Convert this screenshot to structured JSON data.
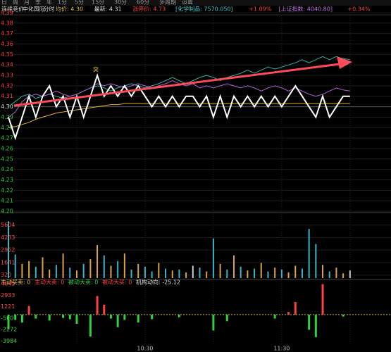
{
  "toolbar": [
    "日",
    "周",
    "月",
    "季",
    "年",
    "1分",
    "5分",
    "15分",
    "30分",
    "60分",
    "多周期",
    "设置"
  ],
  "chart_data": {
    "type": "line",
    "header": [
      {
        "text": "连续竞价",
        "color": "#dddddd"
      },
      {
        "text": "中化国际",
        "color": "#dddddd"
      },
      {
        "text": "分时",
        "color": "#dddddd"
      },
      {
        "text": "均价: 4.30",
        "color": "#e6c04a"
      },
      {
        "text": "最新: 4.31",
        "color": "#dddddd"
      },
      {
        "text": "涨停价: 4.73",
        "color": "#ff4040"
      },
      {
        "text": "[化学制品: 7570.050]",
        "color": "#3cc8c8"
      },
      {
        "text": "+1.09%",
        "color": "#ff4040"
      },
      {
        "text": "[上证指数: 4040.80]",
        "color": "#c070e0"
      },
      {
        "text": "+0.34%",
        "color": "#ff4040"
      }
    ],
    "annotation": "突",
    "prev_close": 4.3,
    "x": [
      0,
      3,
      6,
      9,
      12,
      15,
      18,
      21,
      24,
      27,
      30,
      33,
      36,
      39,
      42,
      45,
      48,
      51,
      54,
      57,
      60,
      63,
      66,
      69,
      72,
      75,
      78,
      81,
      84,
      87,
      90,
      93,
      96,
      99,
      102,
      105,
      108,
      111,
      114,
      117,
      120,
      123,
      126,
      129,
      132,
      135,
      138,
      141,
      144,
      147,
      150
    ],
    "xlim": [
      0,
      168
    ],
    "xticks": [
      {
        "value": 60,
        "label": "10:30"
      },
      {
        "value": 120,
        "label": "11:30"
      }
    ],
    "xgrid": [
      30,
      60,
      90,
      120,
      150
    ],
    "ylim": [
      4.2,
      4.39
    ],
    "yticks": [
      4.39,
      4.38,
      4.37,
      4.36,
      4.35,
      4.34,
      4.33,
      4.32,
      4.31,
      {
        "value": 4.3,
        "label": "4.30"
      },
      4.29,
      4.28,
      4.27,
      4.26,
      4.25,
      4.24,
      4.23,
      4.22,
      4.21,
      {
        "value": 4.2,
        "label": "4.20"
      }
    ],
    "up_color": "#ff4040",
    "down_color": "#30d040",
    "flat_color": "#dddddd",
    "series": [
      {
        "name": "分时",
        "color": "#ffffff",
        "values": [
          4.29,
          4.27,
          4.29,
          4.31,
          4.29,
          4.31,
          4.32,
          4.3,
          4.31,
          4.29,
          4.31,
          4.29,
          4.31,
          4.33,
          4.31,
          4.32,
          4.31,
          4.32,
          4.31,
          4.32,
          4.31,
          4.3,
          4.31,
          4.3,
          4.31,
          4.3,
          4.31,
          4.31,
          4.3,
          4.31,
          4.29,
          4.31,
          4.29,
          4.31,
          4.3,
          4.31,
          4.3,
          4.31,
          4.3,
          4.31,
          4.3,
          4.31,
          4.32,
          4.31,
          4.3,
          4.29,
          4.31,
          4.29,
          4.3,
          4.31,
          4.31
        ]
      },
      {
        "name": "均价",
        "color": "#e6b030",
        "values": [
          4.28,
          4.281,
          4.283,
          4.285,
          4.288,
          4.29,
          4.292,
          4.294,
          4.295,
          4.296,
          4.297,
          4.298,
          4.299,
          4.3,
          4.301,
          4.302,
          4.302,
          4.303,
          4.303,
          4.303,
          4.303,
          4.303,
          4.303,
          4.303,
          4.303,
          4.303,
          4.303,
          4.303,
          4.303,
          4.303,
          4.303,
          4.303,
          4.303,
          4.303,
          4.303,
          4.303,
          4.303,
          4.303,
          4.303,
          4.303,
          4.303,
          4.303,
          4.303,
          4.303,
          4.303,
          4.303,
          4.303,
          4.303,
          4.303,
          4.303,
          4.303
        ]
      },
      {
        "name": "化学制品",
        "color": "#b060d0",
        "values": [
          4.29,
          4.295,
          4.305,
          4.31,
          4.312,
          4.31,
          4.312,
          4.315,
          4.312,
          4.31,
          4.312,
          4.315,
          4.318,
          4.322,
          4.32,
          4.322,
          4.32,
          4.318,
          4.32,
          4.322,
          4.32,
          4.318,
          4.32,
          4.322,
          4.325,
          4.322,
          4.32,
          4.322,
          4.318,
          4.32,
          4.318,
          4.32,
          4.322,
          4.32,
          4.318,
          4.32,
          4.318,
          4.315,
          4.318,
          4.32,
          4.318,
          4.315,
          4.318,
          4.315,
          4.312,
          4.31,
          4.312,
          4.315,
          4.318,
          4.316,
          4.315
        ]
      },
      {
        "name": "上证指数",
        "color": "#30b0a0",
        "values": [
          4.3,
          4.305,
          4.31,
          4.312,
          4.308,
          4.31,
          4.312,
          4.31,
          4.308,
          4.31,
          4.312,
          4.315,
          4.318,
          4.32,
          4.318,
          4.315,
          4.318,
          4.32,
          4.322,
          4.32,
          4.318,
          4.32,
          4.322,
          4.325,
          4.328,
          4.325,
          4.322,
          4.325,
          4.328,
          4.33,
          4.328,
          4.325,
          4.328,
          4.33,
          4.332,
          4.335,
          4.332,
          4.335,
          4.338,
          4.336,
          4.338,
          4.34,
          4.342,
          4.345,
          4.342,
          4.345,
          4.348,
          4.345,
          4.348,
          4.346,
          4.345
        ]
      }
    ],
    "volume": {
      "ylim": [
        0,
        6700
      ],
      "yticks": [
        5604,
        4283,
        2962,
        1641,
        320
      ],
      "values": [
        6000,
        2500,
        1500,
        1800,
        1200,
        2200,
        900,
        1400,
        2600,
        1100,
        800,
        1500,
        2000,
        3500,
        2400,
        1300,
        1800,
        2600,
        900,
        1500,
        1200,
        700,
        1600,
        1000,
        800,
        900,
        600,
        1300,
        1100,
        700,
        4200,
        1500,
        900,
        2400,
        1200,
        800,
        1000,
        1600,
        700,
        1100,
        900,
        600,
        1300,
        1000,
        5200,
        3600,
        1400,
        700,
        1100,
        500,
        800
      ]
    },
    "flow": {
      "header": [
        "主动买卖: 0",
        "主动大卖: 0",
        "被动大卖: 0",
        "被动大买: 0",
        "机构动向: -25.12"
      ],
      "ylim": [
        -4800,
        5200
      ],
      "yticks": [
        4645,
        2933,
        1221,
        -560,
        -2272,
        -3984
      ],
      "values": [
        -2200,
        -800,
        -1200,
        1300,
        -600,
        null,
        -900,
        null,
        -500,
        -700,
        -1400,
        null,
        -3300,
        2800,
        1500,
        -600,
        -1900,
        -800,
        null,
        -1200,
        null,
        -700,
        null,
        null,
        null,
        -400,
        null,
        null,
        null,
        null,
        -2400,
        null,
        -1000,
        null,
        null,
        null,
        null,
        null,
        null,
        -600,
        null,
        400,
        1900,
        null,
        -2300,
        -3400,
        4600,
        null,
        null,
        -300,
        null
      ]
    }
  }
}
